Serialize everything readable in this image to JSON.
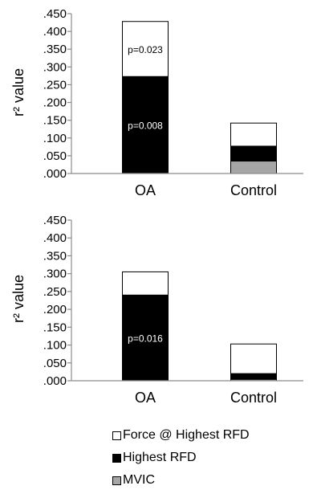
{
  "chart_data": [
    {
      "type": "bar",
      "stacked": true,
      "ylabel": "r² value",
      "ylim": [
        0,
        0.45
      ],
      "yticks": [
        ".000",
        ".050",
        ".100",
        ".150",
        ".200",
        ".250",
        ".300",
        ".350",
        ".400",
        ".450"
      ],
      "categories": [
        "OA",
        "Control"
      ],
      "series": [
        {
          "name": "MVIC",
          "color": "#a6a6a6",
          "values": [
            0.0,
            0.035
          ]
        },
        {
          "name": "Highest RFD",
          "color": "#000000",
          "values": [
            0.273,
            0.042
          ]
        },
        {
          "name": "Force @ Highest RFD",
          "color": "#ffffff",
          "values": [
            0.155,
            0.065
          ]
        }
      ],
      "annotations": [
        {
          "category": "OA",
          "series": "Highest RFD",
          "text": "p=0.008"
        },
        {
          "category": "OA",
          "series": "Force @ Highest RFD",
          "text": "p=0.023"
        }
      ]
    },
    {
      "type": "bar",
      "stacked": true,
      "ylabel": "r² value",
      "ylim": [
        0,
        0.45
      ],
      "yticks": [
        ".000",
        ".050",
        ".100",
        ".150",
        ".200",
        ".250",
        ".300",
        ".350",
        ".400",
        ".450"
      ],
      "categories": [
        "OA",
        "Control"
      ],
      "series": [
        {
          "name": "MVIC",
          "color": "#a6a6a6",
          "values": [
            0.0,
            0.004
          ]
        },
        {
          "name": "Highest RFD",
          "color": "#000000",
          "values": [
            0.24,
            0.016
          ]
        },
        {
          "name": "Force @ Highest RFD",
          "color": "#ffffff",
          "values": [
            0.065,
            0.083
          ]
        }
      ],
      "annotations": [
        {
          "category": "OA",
          "series": "Highest RFD",
          "text": "p=0.016"
        }
      ]
    }
  ],
  "legend": {
    "items": [
      {
        "label": "Force @ Highest RFD",
        "color": "#ffffff"
      },
      {
        "label": "Highest RFD",
        "color": "#000000"
      },
      {
        "label": "MVIC",
        "color": "#a6a6a6"
      }
    ]
  }
}
